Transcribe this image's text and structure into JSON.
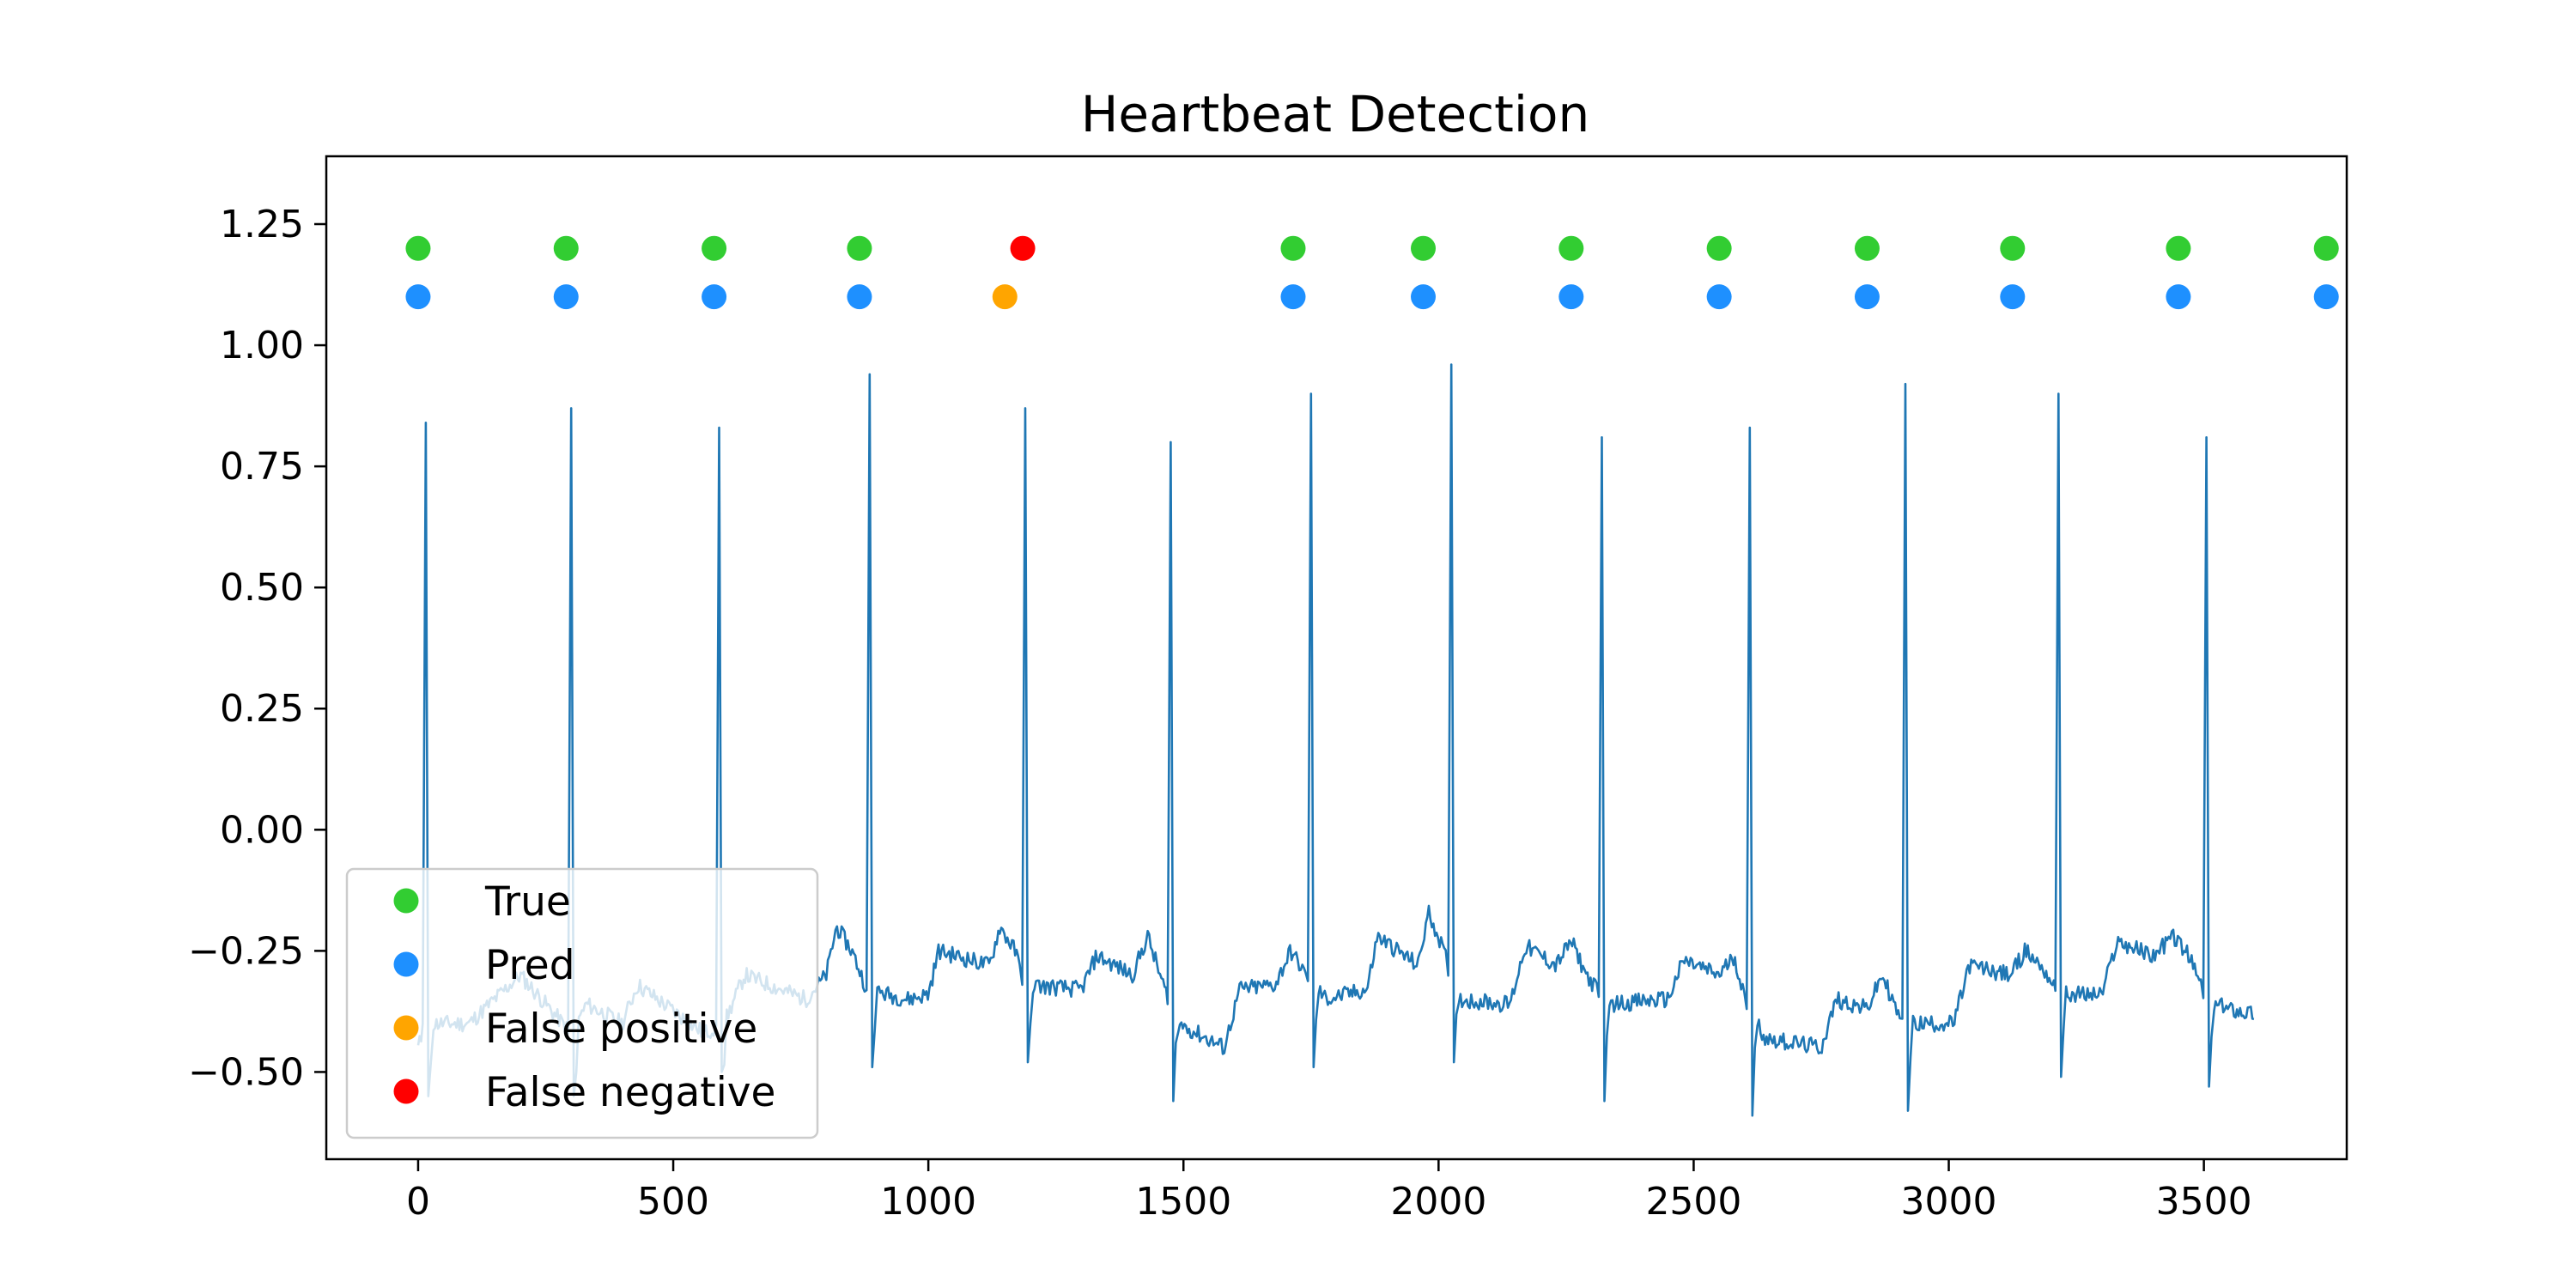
{
  "chart_data": {
    "type": "scatter",
    "title": "Heartbeat Detection",
    "xlabel": "",
    "ylabel": "",
    "xlim": [
      -180,
      3780
    ],
    "ylim": [
      -0.68,
      1.39
    ],
    "x_ticks": [
      0,
      500,
      1000,
      1500,
      2000,
      2500,
      3000,
      3500
    ],
    "x_tick_labels": [
      "0",
      "500",
      "1000",
      "1500",
      "2000",
      "2500",
      "3000",
      "3500"
    ],
    "y_ticks": [
      1.25,
      1.0,
      0.75,
      0.5,
      0.25,
      0.0,
      -0.25,
      -0.5
    ],
    "y_tick_labels": [
      "1.25",
      "1.00",
      "0.75",
      "0.50",
      "0.25",
      "0.00",
      "−0.25",
      "−0.50"
    ],
    "grid": false,
    "legend_position": "lower-left",
    "signal": {
      "color": "#1f77b4",
      "x_range": [
        0,
        3600
      ],
      "baseline": [
        [
          0,
          -0.45
        ],
        [
          15,
          -0.4
        ],
        [
          100,
          -0.4
        ],
        [
          200,
          -0.3
        ],
        [
          300,
          -0.42
        ],
        [
          330,
          -0.36
        ],
        [
          400,
          -0.4
        ],
        [
          430,
          -0.32
        ],
        [
          560,
          -0.42
        ],
        [
          600,
          -0.4
        ],
        [
          640,
          -0.3
        ],
        [
          760,
          -0.35
        ],
        [
          800,
          -0.3
        ],
        [
          820,
          -0.2
        ],
        [
          850,
          -0.25
        ],
        [
          880,
          -0.33
        ],
        [
          960,
          -0.35
        ],
        [
          1000,
          -0.34
        ],
        [
          1020,
          -0.25
        ],
        [
          1120,
          -0.28
        ],
        [
          1140,
          -0.2
        ],
        [
          1170,
          -0.25
        ],
        [
          1190,
          -0.32
        ],
        [
          1300,
          -0.33
        ],
        [
          1330,
          -0.26
        ],
        [
          1400,
          -0.3
        ],
        [
          1430,
          -0.22
        ],
        [
          1460,
          -0.32
        ],
        [
          1490,
          -0.4
        ],
        [
          1580,
          -0.45
        ],
        [
          1610,
          -0.33
        ],
        [
          1680,
          -0.32
        ],
        [
          1710,
          -0.25
        ],
        [
          1740,
          -0.3
        ],
        [
          1780,
          -0.35
        ],
        [
          1860,
          -0.33
        ],
        [
          1880,
          -0.22
        ],
        [
          1960,
          -0.28
        ],
        [
          1980,
          -0.17
        ],
        [
          2000,
          -0.22
        ],
        [
          2040,
          -0.35
        ],
        [
          2140,
          -0.36
        ],
        [
          2170,
          -0.24
        ],
        [
          2230,
          -0.28
        ],
        [
          2260,
          -0.23
        ],
        [
          2290,
          -0.3
        ],
        [
          2330,
          -0.36
        ],
        [
          2450,
          -0.35
        ],
        [
          2480,
          -0.27
        ],
        [
          2550,
          -0.3
        ],
        [
          2580,
          -0.26
        ],
        [
          2600,
          -0.35
        ],
        [
          2640,
          -0.43
        ],
        [
          2750,
          -0.45
        ],
        [
          2780,
          -0.35
        ],
        [
          2840,
          -0.37
        ],
        [
          2870,
          -0.3
        ],
        [
          2900,
          -0.38
        ],
        [
          2930,
          -0.4
        ],
        [
          3010,
          -0.4
        ],
        [
          3040,
          -0.28
        ],
        [
          3120,
          -0.3
        ],
        [
          3150,
          -0.25
        ],
        [
          3180,
          -0.28
        ],
        [
          3220,
          -0.34
        ],
        [
          3300,
          -0.34
        ],
        [
          3330,
          -0.23
        ],
        [
          3400,
          -0.26
        ],
        [
          3440,
          -0.22
        ],
        [
          3470,
          -0.26
        ],
        [
          3510,
          -0.36
        ],
        [
          3600,
          -0.38
        ]
      ],
      "r_peaks": [
        {
          "x": 15,
          "peak": 0.84,
          "trough": -0.55
        },
        {
          "x": 300,
          "peak": 0.87,
          "trough": -0.55
        },
        {
          "x": 590,
          "peak": 0.83,
          "trough": -0.5
        },
        {
          "x": 885,
          "peak": 0.94,
          "trough": -0.49
        },
        {
          "x": 1190,
          "peak": 0.87,
          "trough": -0.48
        },
        {
          "x": 1475,
          "peak": 0.8,
          "trough": -0.56
        },
        {
          "x": 1750,
          "peak": 0.9,
          "trough": -0.49
        },
        {
          "x": 2025,
          "peak": 0.96,
          "trough": -0.48
        },
        {
          "x": 2320,
          "peak": 0.81,
          "trough": -0.56
        },
        {
          "x": 2610,
          "peak": 0.83,
          "trough": -0.59
        },
        {
          "x": 2915,
          "peak": 0.92,
          "trough": -0.58
        },
        {
          "x": 3215,
          "peak": 0.9,
          "trough": -0.51
        },
        {
          "x": 3505,
          "peak": 0.81,
          "trough": -0.53
        }
      ]
    },
    "series": [
      {
        "name": "True",
        "color": "#32cd32",
        "x": [
          0,
          290,
          580,
          865,
          1715,
          1970,
          2260,
          2550,
          2840,
          3125,
          3450,
          3740
        ],
        "y": [
          1.2,
          1.2,
          1.2,
          1.2,
          1.2,
          1.2,
          1.2,
          1.2,
          1.2,
          1.2,
          1.2,
          1.2
        ]
      },
      {
        "name": "Pred",
        "color": "#1e90ff",
        "x": [
          0,
          290,
          580,
          865,
          1715,
          1970,
          2260,
          2550,
          2840,
          3125,
          3450,
          3740
        ],
        "y": [
          1.1,
          1.1,
          1.1,
          1.1,
          1.1,
          1.1,
          1.1,
          1.1,
          1.1,
          1.1,
          1.1,
          1.1
        ]
      },
      {
        "name": "False positive",
        "color": "#ffa500",
        "x": [
          1150
        ],
        "y": [
          1.1
        ]
      },
      {
        "name": "False negative",
        "color": "#ff0000",
        "x": [
          1185
        ],
        "y": [
          1.2
        ]
      }
    ]
  }
}
